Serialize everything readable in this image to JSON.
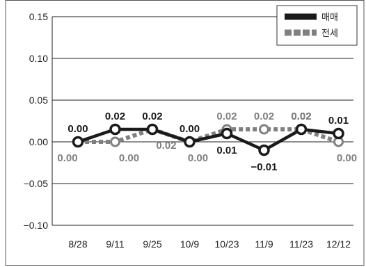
{
  "chart_data": {
    "type": "line",
    "categories": [
      "8/28",
      "9/11",
      "9/25",
      "10/9",
      "10/23",
      "11/9",
      "11/23",
      "12/12"
    ],
    "ylim": [
      -0.1,
      0.15
    ],
    "yticks": [
      "0.15",
      "0.10",
      "0.05",
      "0.00",
      "-0.05",
      "-0.10"
    ],
    "grid": true,
    "legend_position": "top-right",
    "series": [
      {
        "name": "매매",
        "style": "solid",
        "color": "#1a1a1a",
        "values": [
          0.0,
          0.015,
          0.015,
          0.0,
          0.01,
          -0.01,
          0.015,
          0.01
        ],
        "labels": [
          "0.00",
          "0.02",
          "0.02",
          "0.00",
          "0.01",
          "-0.01",
          "0.02",
          "0.01"
        ]
      },
      {
        "name": "전세",
        "style": "dotted",
        "color": "#808080",
        "values": [
          0.0,
          0.0,
          0.015,
          0.0,
          0.015,
          0.015,
          0.015,
          0.0
        ],
        "labels": [
          "0.00",
          "0.00",
          "0.02",
          "0.00",
          "0.02",
          "0.02",
          "0.02",
          "0.00"
        ]
      }
    ]
  }
}
